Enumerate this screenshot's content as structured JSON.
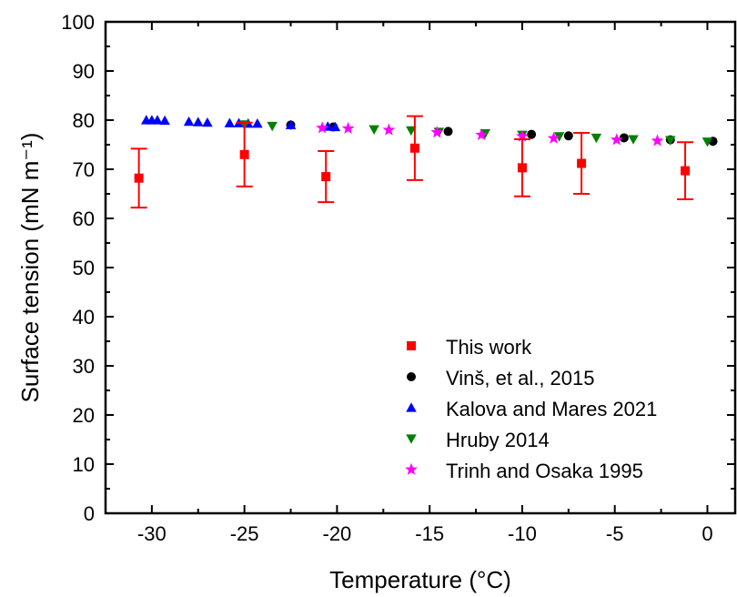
{
  "chart_data": {
    "type": "scatter",
    "xlabel": "Temperature (°C)",
    "ylabel": "Surface tension (mN m⁻¹)",
    "xlim": [
      -32.5,
      1.5
    ],
    "ylim": [
      0,
      100
    ],
    "x_ticks": [
      -30,
      -25,
      -20,
      -15,
      -10,
      -5,
      0
    ],
    "y_ticks": [
      0,
      10,
      20,
      30,
      40,
      50,
      60,
      70,
      80,
      90,
      100
    ],
    "legend_position": "bottom-right",
    "grid": false,
    "series": [
      {
        "name": "This work",
        "marker": "square",
        "color": "#ff0000",
        "points": [
          {
            "x": -30.7,
            "y": 68.2,
            "err": 6.0
          },
          {
            "x": -25.0,
            "y": 73.0,
            "err": 6.5
          },
          {
            "x": -20.6,
            "y": 68.5,
            "err": 5.2
          },
          {
            "x": -15.8,
            "y": 74.3,
            "err": 6.5
          },
          {
            "x": -10.0,
            "y": 70.3,
            "err": 5.8
          },
          {
            "x": -6.8,
            "y": 71.2,
            "err": 6.2
          },
          {
            "x": -1.2,
            "y": 69.7,
            "err": 5.8
          }
        ]
      },
      {
        "name": "Vinš, et al., 2015",
        "marker": "circle",
        "color": "#000000",
        "points": [
          {
            "x": -22.5,
            "y": 79.0
          },
          {
            "x": -20.2,
            "y": 78.6
          },
          {
            "x": -14.0,
            "y": 77.7
          },
          {
            "x": -9.5,
            "y": 77.1
          },
          {
            "x": -7.5,
            "y": 76.8
          },
          {
            "x": -4.5,
            "y": 76.4
          },
          {
            "x": -2.0,
            "y": 76.0
          },
          {
            "x": 0.3,
            "y": 75.7
          }
        ]
      },
      {
        "name": "Kalova and Mares 2021",
        "marker": "triangle-up",
        "color": "#0000ff",
        "points": [
          {
            "x": -30.3,
            "y": 80.0
          },
          {
            "x": -30.0,
            "y": 80.0
          },
          {
            "x": -29.7,
            "y": 80.0
          },
          {
            "x": -29.3,
            "y": 79.9
          },
          {
            "x": -28.0,
            "y": 79.7
          },
          {
            "x": -27.5,
            "y": 79.6
          },
          {
            "x": -27.0,
            "y": 79.5
          },
          {
            "x": -25.8,
            "y": 79.4
          },
          {
            "x": -25.3,
            "y": 79.4
          },
          {
            "x": -24.8,
            "y": 79.3
          },
          {
            "x": -24.3,
            "y": 79.3
          },
          {
            "x": -22.5,
            "y": 79.0
          },
          {
            "x": -20.5,
            "y": 78.7
          },
          {
            "x": -20.1,
            "y": 78.6
          }
        ]
      },
      {
        "name": "Hruby 2014",
        "marker": "triangle-down",
        "color": "#008000",
        "points": [
          {
            "x": -25.0,
            "y": 79.1
          },
          {
            "x": -23.5,
            "y": 78.8
          },
          {
            "x": -18.0,
            "y": 78.1
          },
          {
            "x": -16.0,
            "y": 77.9
          },
          {
            "x": -14.5,
            "y": 77.6
          },
          {
            "x": -12.0,
            "y": 77.3
          },
          {
            "x": -10.0,
            "y": 77.0
          },
          {
            "x": -8.0,
            "y": 76.7
          },
          {
            "x": -6.0,
            "y": 76.4
          },
          {
            "x": -4.0,
            "y": 76.1
          },
          {
            "x": -2.0,
            "y": 75.9
          },
          {
            "x": 0.0,
            "y": 75.6
          }
        ]
      },
      {
        "name": "Trinh and Osaka 1995",
        "marker": "star",
        "color": "#ff00ff",
        "points": [
          {
            "x": -20.8,
            "y": 78.4
          },
          {
            "x": -19.4,
            "y": 78.3
          },
          {
            "x": -17.2,
            "y": 78.0
          },
          {
            "x": -14.6,
            "y": 77.5
          },
          {
            "x": -12.2,
            "y": 77.0
          },
          {
            "x": -10.0,
            "y": 76.7
          },
          {
            "x": -8.3,
            "y": 76.3
          },
          {
            "x": -4.9,
            "y": 76.0
          },
          {
            "x": -2.7,
            "y": 75.8
          }
        ]
      }
    ]
  }
}
